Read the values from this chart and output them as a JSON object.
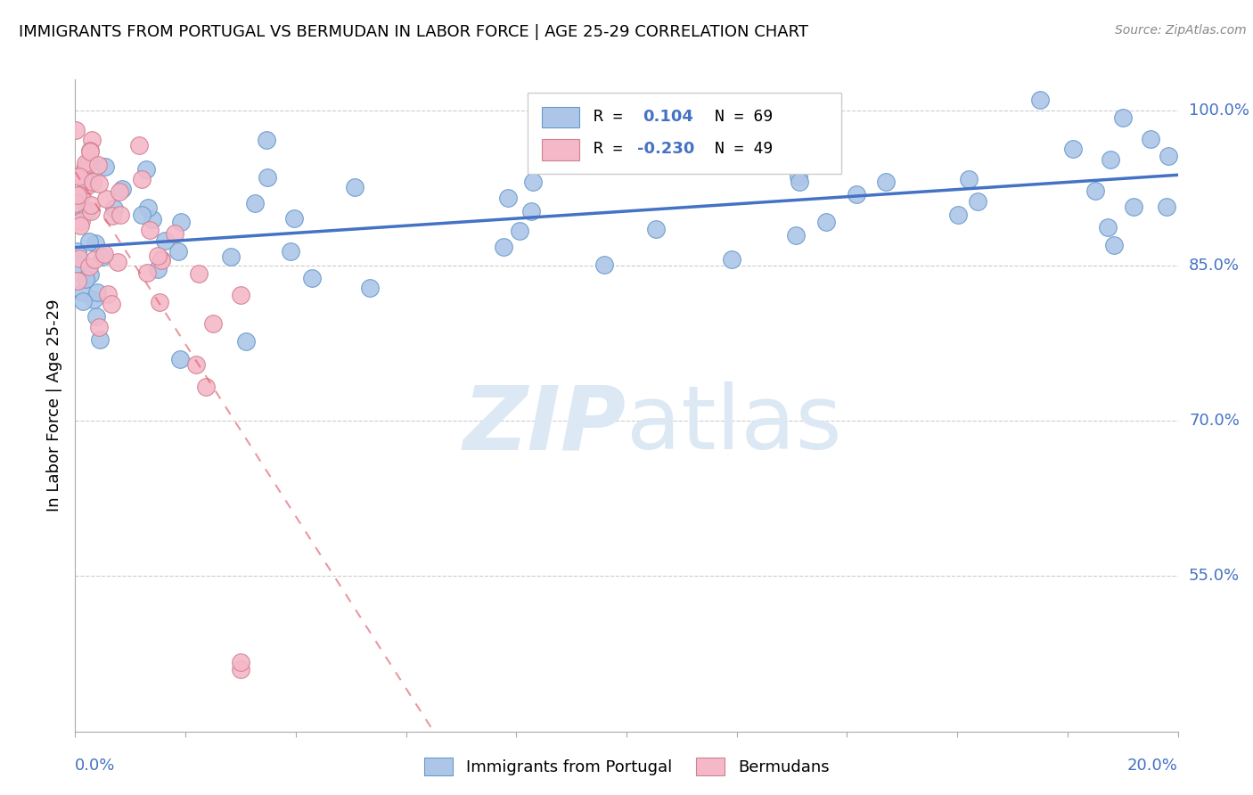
{
  "title": "IMMIGRANTS FROM PORTUGAL VS BERMUDAN IN LABOR FORCE | AGE 25-29 CORRELATION CHART",
  "source": "Source: ZipAtlas.com",
  "ylabel": "In Labor Force | Age 25-29",
  "right_yticks": [
    1.0,
    0.85,
    0.7,
    0.55
  ],
  "right_ytick_labels": [
    "100.0%",
    "85.0%",
    "70.0%",
    "55.0%"
  ],
  "xlim": [
    0.0,
    0.2
  ],
  "ylim": [
    0.4,
    1.03
  ],
  "blue_color": "#adc6e8",
  "blue_edge": "#6699cc",
  "blue_line": "#4472c4",
  "pink_color": "#f4b8c8",
  "pink_edge": "#d08090",
  "pink_line": "#e06070",
  "watermark_color": "#dce8f4",
  "grid_color": "#cccccc",
  "legend_r1_label": "R = ",
  "legend_r1_val": "0.104",
  "legend_n1": "N = 69",
  "legend_r2_label": "R = ",
  "legend_r2_val": "-0.230",
  "legend_n2": "N = 49"
}
